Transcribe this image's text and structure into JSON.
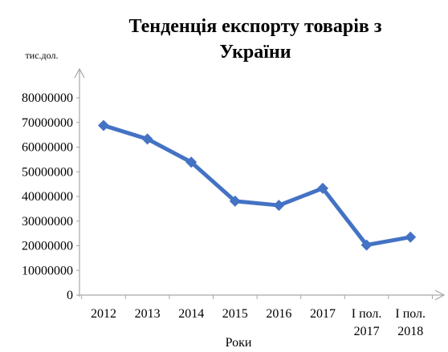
{
  "chart_data": {
    "type": "line",
    "title": "Тенденція експорту товарів  з України",
    "title_lines": [
      "Тенденція експорту товарів  з",
      "України"
    ],
    "ylabel": "тис.дол.",
    "xlabel": "Роки",
    "categories": [
      "2012",
      "2013",
      "2014",
      "2015",
      "2016",
      "2017",
      "І пол. 2017",
      "І пол. 2018"
    ],
    "category_lines": [
      [
        "2012"
      ],
      [
        "2013"
      ],
      [
        "2014"
      ],
      [
        "2015"
      ],
      [
        "2016"
      ],
      [
        "2017"
      ],
      [
        "І пол.",
        "2017"
      ],
      [
        "І пол.",
        "2018"
      ]
    ],
    "series": [
      {
        "values": [
          68800000,
          63300000,
          53900000,
          38100000,
          36400000,
          43300000,
          20300000,
          23500000
        ],
        "color": "#4472c4"
      }
    ],
    "ylim": [
      0,
      80000000
    ],
    "yticks": [
      "0",
      "10000000",
      "20000000",
      "30000000",
      "40000000",
      "50000000",
      "60000000",
      "70000000",
      "80000000"
    ],
    "grid": false,
    "legend": "none",
    "axis_color": "#a6a6a6"
  }
}
